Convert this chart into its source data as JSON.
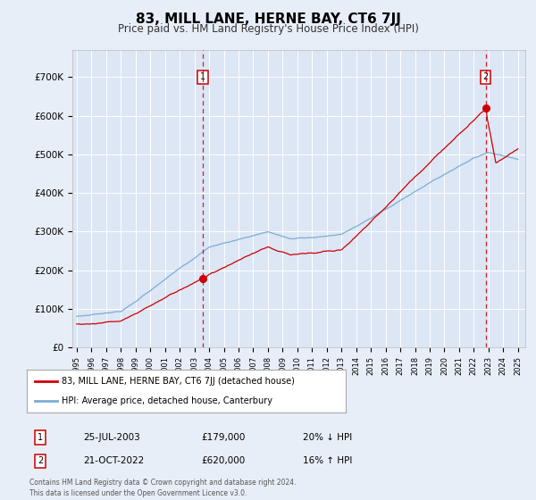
{
  "title": "83, MILL LANE, HERNE BAY, CT6 7JJ",
  "subtitle": "Price paid vs. HM Land Registry's House Price Index (HPI)",
  "bg_color": "#e8eef8",
  "plot_bg_color": "#dce6f5",
  "red_line_label": "83, MILL LANE, HERNE BAY, CT6 7JJ (detached house)",
  "blue_line_label": "HPI: Average price, detached house, Canterbury",
  "annotation1": {
    "num": "1",
    "date": "25-JUL-2003",
    "price": "£179,000",
    "pct": "20% ↓ HPI"
  },
  "annotation2": {
    "num": "2",
    "date": "21-OCT-2022",
    "price": "£620,000",
    "pct": "16% ↑ HPI"
  },
  "footer": "Contains HM Land Registry data © Crown copyright and database right 2024.\nThis data is licensed under the Open Government Licence v3.0.",
  "ylim": [
    0,
    770000
  ],
  "yticks": [
    0,
    100000,
    200000,
    300000,
    400000,
    500000,
    600000,
    700000
  ],
  "ytick_labels": [
    "£0",
    "£100K",
    "£200K",
    "£300K",
    "£400K",
    "£500K",
    "£600K",
    "£700K"
  ],
  "vline1_x": 2003.57,
  "vline2_x": 2022.8,
  "sale1_x": 2003.57,
  "sale1_y": 179000,
  "sale2_x": 2022.8,
  "sale2_y": 620000,
  "red_color": "#cc0000",
  "blue_color": "#7aadd4",
  "vline_color": "#cc0000",
  "xlim_left": 1994.7,
  "xlim_right": 2025.5
}
